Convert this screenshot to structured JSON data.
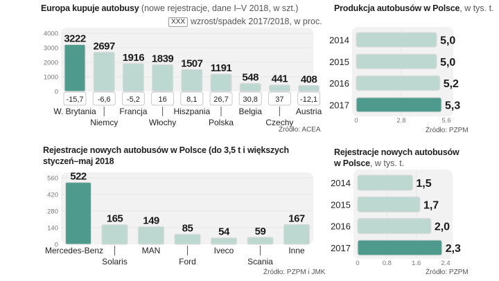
{
  "colors": {
    "highlight": "#4e9a8c",
    "normal": "#bcd8d0",
    "plot_bg": "#f2f2f2",
    "gridline": "#e6e6e6"
  },
  "chart_data": [
    {
      "id": "europe",
      "type": "bar",
      "title_bold": "Europa kupuje autobusy",
      "title_light": " (nowe rejestracje, dane I–V 2018,  w szt.)",
      "legend_box": "XXX",
      "legend_text": "wzrost/spadek 2017/2018,  w proc.",
      "categories": [
        "W. Brytania",
        "Niemcy",
        "Francja",
        "Włochy",
        "Hiszpania",
        "Polska",
        "Belgia",
        "Czechy",
        "Austria"
      ],
      "values": [
        3222,
        2697,
        1916,
        1839,
        1507,
        1191,
        548,
        441,
        408
      ],
      "change_pct": [
        "-15,7",
        "-6,6",
        "-5,2",
        "16",
        "8,1",
        "26,7",
        "30,8",
        "37",
        "-12,1"
      ],
      "highlight_index": 0,
      "yticks": [
        "0",
        "1000",
        "2000",
        "3000",
        "4000"
      ],
      "ylim": [
        0,
        4000
      ],
      "grid": true,
      "source": "Źródło: ACEA"
    },
    {
      "id": "pl-production",
      "type": "bar",
      "orientation": "horizontal",
      "title_bold": "Produkcja autobusów w Polsce",
      "title_light": ", w tys. t.",
      "categories": [
        "2014",
        "2015",
        "2016",
        "2017"
      ],
      "values": [
        5.0,
        5.0,
        5.2,
        5.3
      ],
      "value_labels": [
        "5,0",
        "5,0",
        "5,2",
        "5,3"
      ],
      "highlight_index": 3,
      "xticks": [
        "0",
        "2.8",
        "5.6"
      ],
      "xlim": [
        0,
        5.6
      ],
      "grid": true,
      "source": "Źródło: PZPM"
    },
    {
      "id": "pl-registrations-brands",
      "type": "bar",
      "title_bold": "Rejestracje nowych autobusów w Polsce (do 3,5 t i większych",
      "title_line2": "styczeń–maj 2018",
      "categories": [
        "Mercedes-Benz",
        "Solaris",
        "MAN",
        "Ford",
        "Iveco",
        "Scania",
        "Inne"
      ],
      "values": [
        522,
        165,
        149,
        85,
        54,
        59,
        167
      ],
      "highlight_index": 0,
      "yticks": [
        "0",
        "140",
        "280",
        "420",
        "560"
      ],
      "ylim": [
        0,
        560
      ],
      "grid": true,
      "source": "Źródło: PZPM i JMK"
    },
    {
      "id": "pl-registrations",
      "type": "bar",
      "orientation": "horizontal",
      "title_bold": "Rejestracje nowych autobusów",
      "title_bold_line2": "w Polsce",
      "title_light": ", w tys. t.",
      "categories": [
        "2014",
        "2015",
        "2016",
        "2017"
      ],
      "values": [
        1.5,
        1.7,
        2.0,
        2.3
      ],
      "value_labels": [
        "1,5",
        "1,7",
        "2,0",
        "2,3"
      ],
      "highlight_index": 3,
      "xticks": [
        "0",
        "0.8",
        "1.6",
        "2.4"
      ],
      "xlim": [
        0,
        2.4
      ],
      "grid": true,
      "source": "Źródło: PZPM"
    }
  ]
}
